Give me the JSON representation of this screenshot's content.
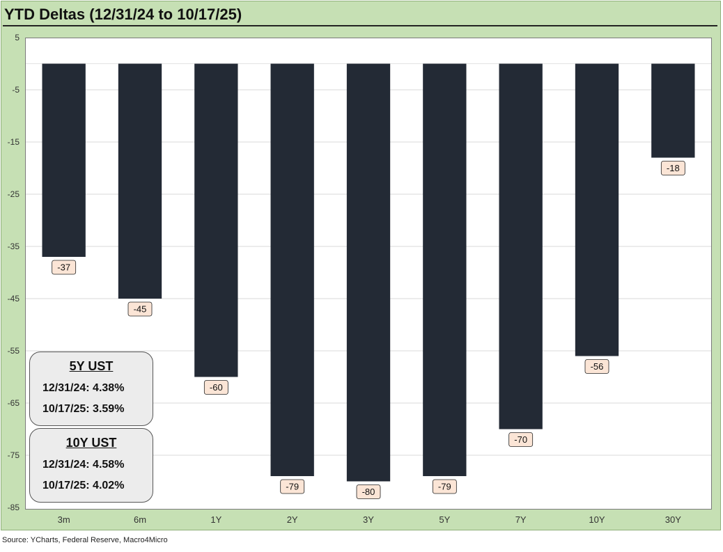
{
  "title": "YTD Deltas (12/31/24 to 10/17/25)",
  "source": "Source: YCharts, Federal Reserve, Macro4Micro",
  "colors": {
    "frame": "#c6e0b4",
    "bar": "#232a35",
    "label_fill": "#fbe5d6",
    "grid": "#d9d9d9"
  },
  "chart_data": {
    "type": "bar",
    "title": "YTD Deltas (12/31/24 to 10/17/25)",
    "categories": [
      "3m",
      "6m",
      "1Y",
      "2Y",
      "3Y",
      "5Y",
      "7Y",
      "10Y",
      "30Y"
    ],
    "values": [
      -37,
      -45,
      -60,
      -79,
      -80,
      -79,
      -70,
      -56,
      -18
    ],
    "data_labels": [
      "-37",
      "-45",
      "-60",
      "-79",
      "-80",
      "-79",
      "-70",
      "-56",
      "-18"
    ],
    "ylim": [
      -85,
      5
    ],
    "yticks": [
      5,
      -5,
      -15,
      -25,
      -35,
      -45,
      -55,
      -65,
      -75,
      -85
    ],
    "grid": true,
    "legend": "none"
  },
  "info_boxes": [
    {
      "header": "5Y UST",
      "rows": [
        "12/31/24:  4.38%",
        "10/17/25:  3.59%"
      ]
    },
    {
      "header": "10Y UST",
      "rows": [
        "12/31/24:  4.58%",
        "10/17/25:  4.02%"
      ]
    }
  ]
}
